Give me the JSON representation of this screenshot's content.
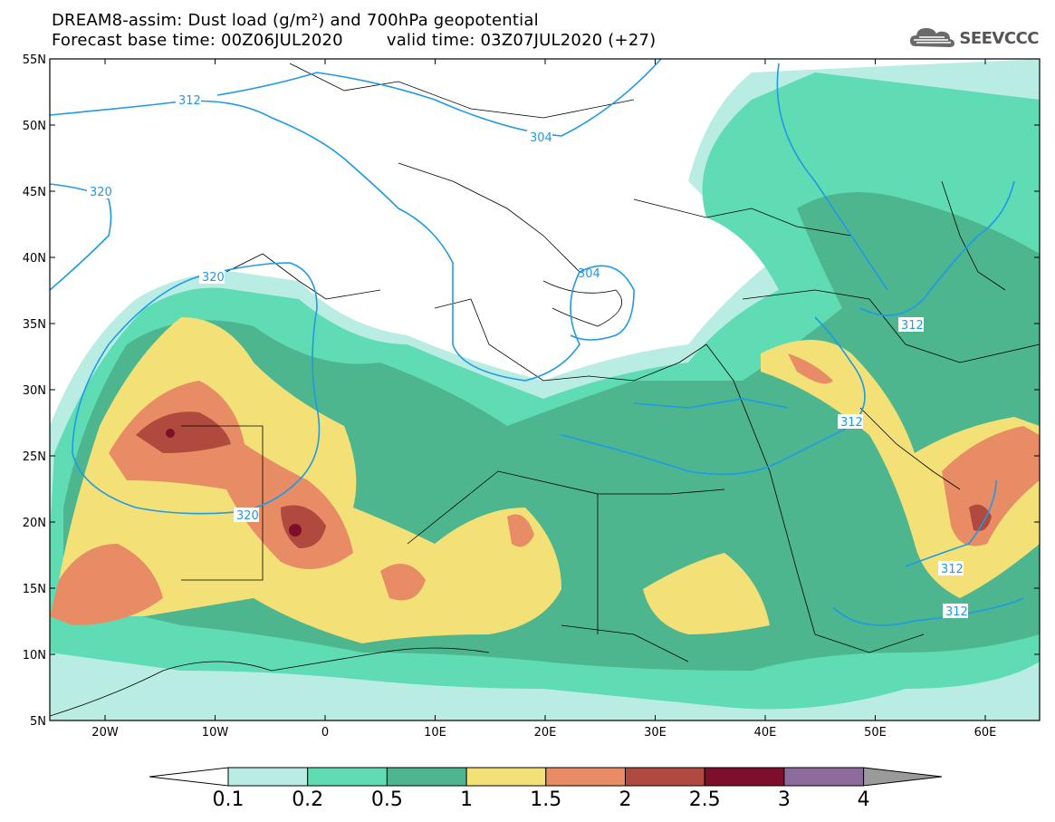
{
  "title": {
    "line1": "DREAM8-assim: Dust load (g/m²) and 700hPa geopotential",
    "base_time": "Forecast base time: 00Z06JUL2020",
    "valid_time": "valid time: 03Z07JUL2020 (+27)"
  },
  "logo": {
    "icon": "cloud-icon",
    "text": "SEEVCCC"
  },
  "axes": {
    "lat_labels": [
      "55N",
      "50N",
      "45N",
      "40N",
      "35N",
      "30N",
      "25N",
      "20N",
      "15N",
      "10N",
      "5N"
    ],
    "lon_labels": [
      "20W",
      "10W",
      "0",
      "10E",
      "20E",
      "30E",
      "40E",
      "50E",
      "60E"
    ]
  },
  "contours": [
    "312",
    "304",
    "320",
    "304",
    "320",
    "320",
    "312",
    "312",
    "312",
    "312"
  ],
  "legend": {
    "labels": [
      "0.1",
      "0.2",
      "0.5",
      "1",
      "1.5",
      "2",
      "2.5",
      "3",
      "4"
    ],
    "colors": [
      "#ffffff",
      "#b9ede3",
      "#5fdcb3",
      "#4db68f",
      "#f3e177",
      "#e88c66",
      "#b04a3e",
      "#7e0f2a",
      "#8d6b9c",
      "#9a9a9a"
    ]
  },
  "colors": {
    "geopotential": "#1e9ae6",
    "borders": "#000000"
  }
}
